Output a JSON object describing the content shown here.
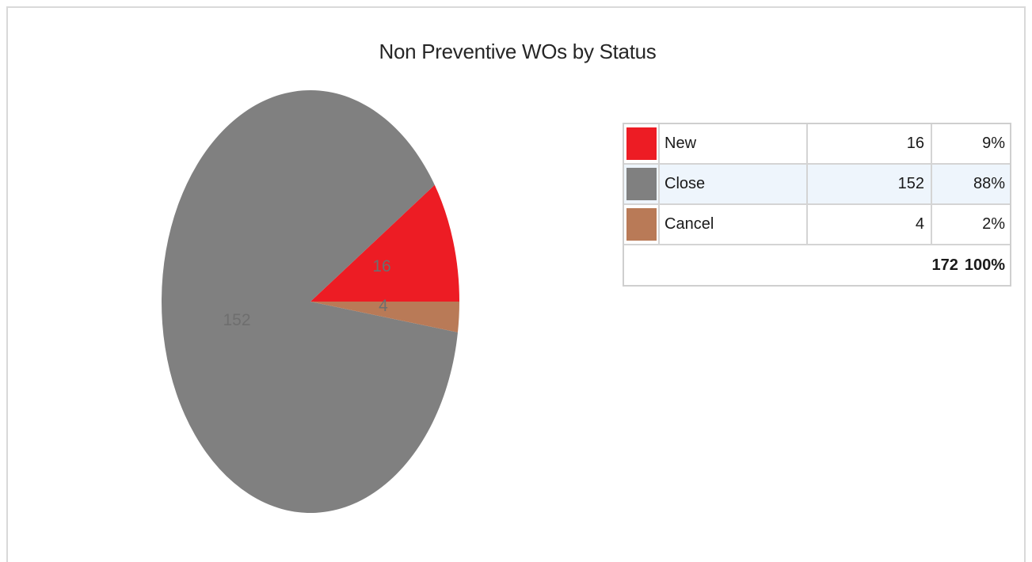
{
  "chart_data": {
    "type": "pie",
    "title": "Non Preventive WOs by Status",
    "categories": [
      "New",
      "Close",
      "Cancel"
    ],
    "values": [
      16,
      152,
      4
    ],
    "percents": [
      "9%",
      "88%",
      "2%"
    ],
    "data_labels": [
      "16",
      "152",
      "4"
    ],
    "colors": [
      "#ed1c24",
      "#808080",
      "#b97a57"
    ],
    "total": "172",
    "total_percent": "100%",
    "legend_placement": "right"
  },
  "legend": {
    "rows": [
      {
        "name": "New",
        "count": "16",
        "percent": "9%",
        "color": "#ed1c24"
      },
      {
        "name": "Close",
        "count": "152",
        "percent": "88%",
        "color": "#808080"
      },
      {
        "name": "Cancel",
        "count": "4",
        "percent": "2%",
        "color": "#b97a57"
      }
    ],
    "total_count": "172",
    "total_percent": "100%"
  }
}
